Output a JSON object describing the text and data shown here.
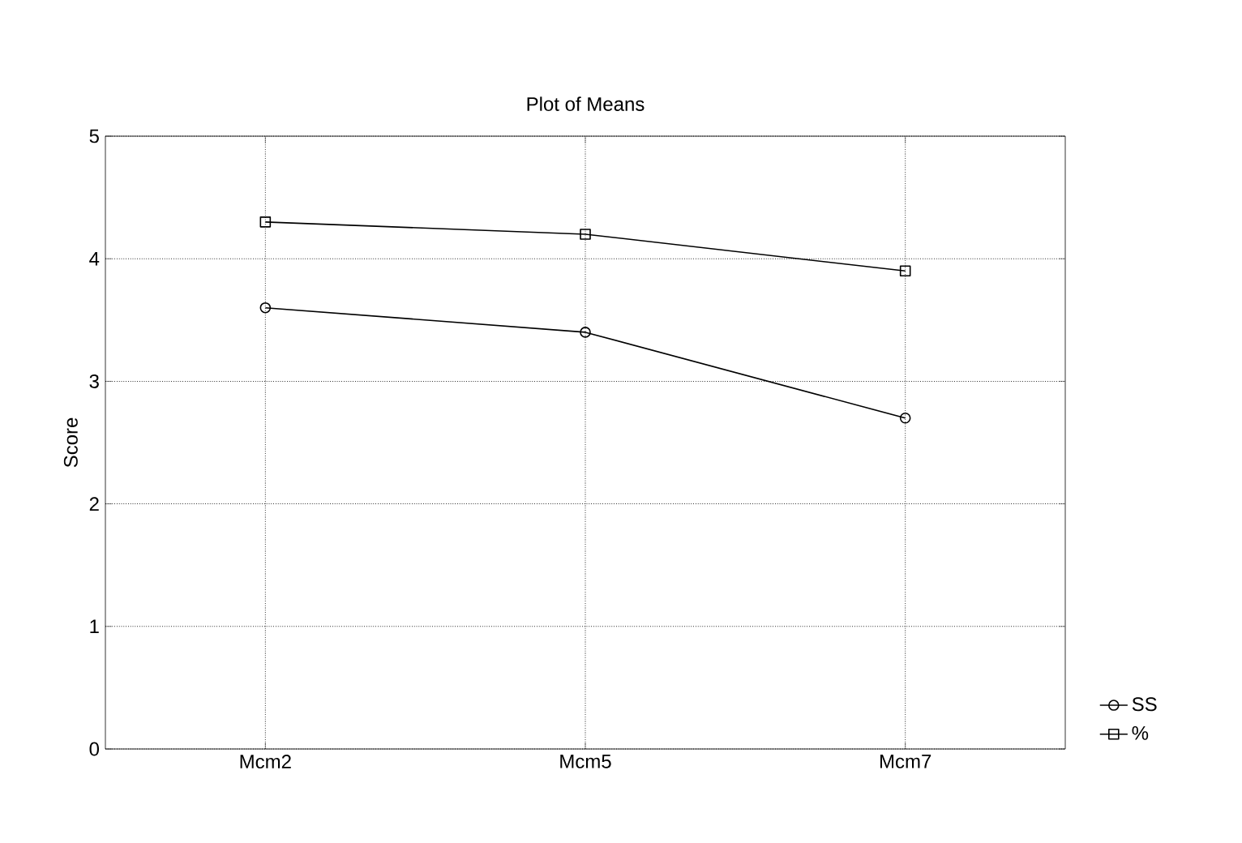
{
  "chart_data": {
    "type": "line",
    "title": "Plot of Means",
    "ylabel": "Score",
    "categories": [
      "Mcm2",
      "Mcm5",
      "Mcm7"
    ],
    "series": [
      {
        "name": "SS",
        "color": "#000000",
        "values": [
          3.6,
          3.4,
          2.7
        ],
        "marker": "circle"
      },
      {
        "name": "%",
        "color": "#000000",
        "values": [
          4.3,
          4.2,
          3.9
        ],
        "marker": "square"
      }
    ],
    "ylim": [
      0,
      5
    ],
    "yticks": [
      0,
      1,
      2,
      3,
      4,
      5
    ],
    "grid": true,
    "legend": "bottom right",
    "line_style": "solid"
  }
}
